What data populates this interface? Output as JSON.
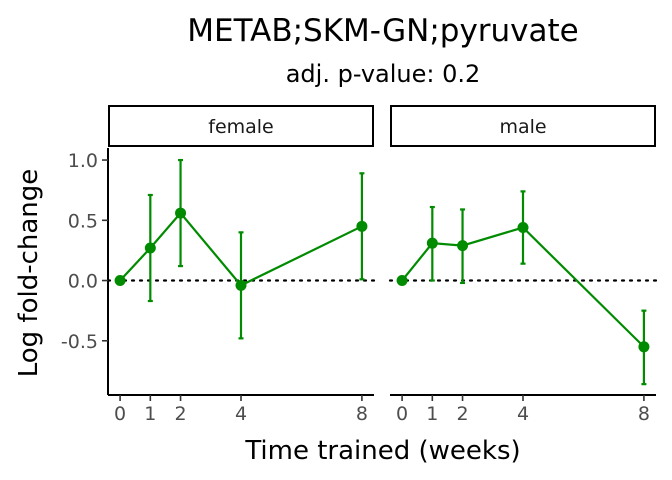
{
  "chart_data": {
    "type": "line",
    "title": "METAB;SKM-GN;pyruvate",
    "subtitle": "adj. p-value: 0.2",
    "xlabel": "Time trained (weeks)",
    "ylabel": "Log fold-change",
    "xlim": [
      -0.4,
      8.4
    ],
    "ylim": [
      -0.95,
      1.1
    ],
    "x_ticks": [
      0,
      1,
      2,
      4,
      8
    ],
    "x_tick_labels": [
      "0",
      "1",
      "2",
      "4",
      "8"
    ],
    "y_ticks": [
      -0.5,
      0.0,
      0.5,
      1.0
    ],
    "y_tick_labels": [
      "-0.5",
      "0.0",
      "0.5",
      "1.0"
    ],
    "reference_line": 0,
    "color": "#008b00",
    "grid": false,
    "panels": [
      {
        "label": "female",
        "x": [
          0,
          1,
          2,
          4,
          8
        ],
        "y": [
          0.0,
          0.27,
          0.56,
          -0.04,
          0.45
        ],
        "lower": [
          0.0,
          -0.17,
          0.12,
          -0.48,
          0.01
        ],
        "upper": [
          0.0,
          0.71,
          1.0,
          0.4,
          0.89
        ]
      },
      {
        "label": "male",
        "x": [
          0,
          1,
          2,
          4,
          8
        ],
        "y": [
          0.0,
          0.31,
          0.29,
          0.44,
          -0.55
        ],
        "lower": [
          0.0,
          0.0,
          -0.02,
          0.14,
          -0.86
        ],
        "upper": [
          0.0,
          0.61,
          0.59,
          0.74,
          -0.25
        ]
      }
    ]
  }
}
